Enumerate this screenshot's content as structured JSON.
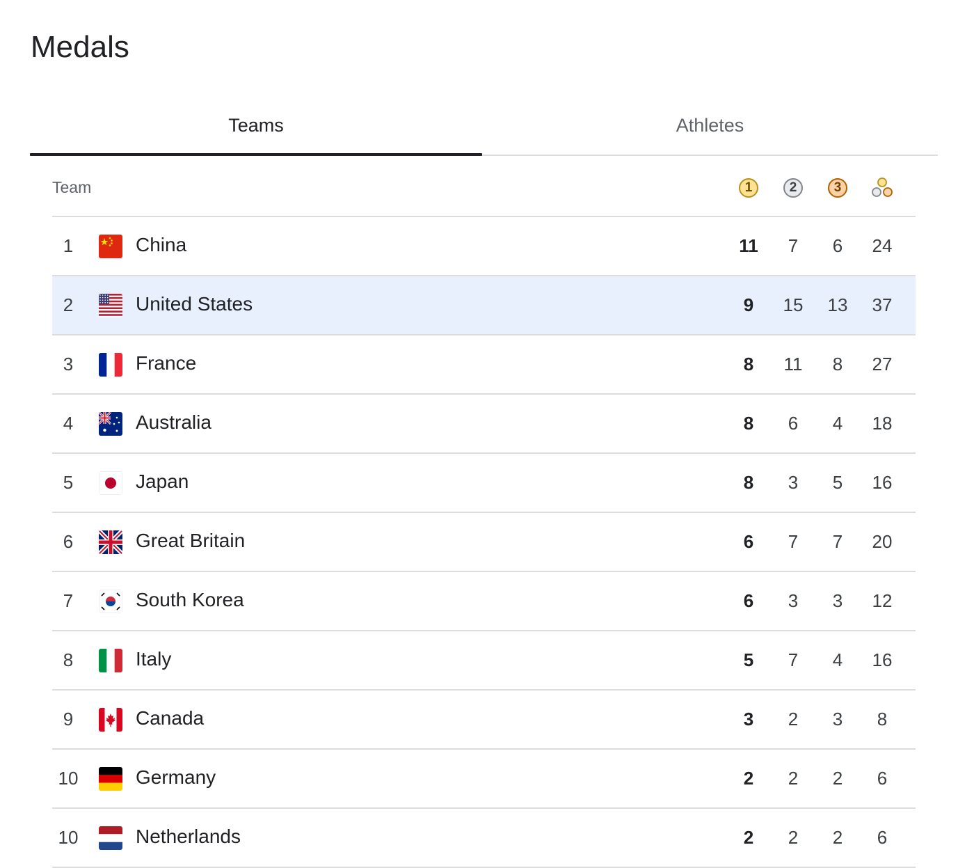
{
  "page": {
    "title": "Medals"
  },
  "tabs": [
    {
      "label": "Teams",
      "selected": true
    },
    {
      "label": "Athletes",
      "selected": false
    }
  ],
  "table": {
    "team_header": "Team",
    "medal_headers": [
      {
        "name": "gold",
        "icon": "gold-medal-icon",
        "glyph": "1",
        "fill": "#fde293",
        "stroke": "#b5911f",
        "text": "#6b4f00"
      },
      {
        "name": "silver",
        "icon": "silver-medal-icon",
        "glyph": "2",
        "fill": "#e8eaed",
        "stroke": "#80868b",
        "text": "#3c4043"
      },
      {
        "name": "bronze",
        "icon": "bronze-medal-icon",
        "glyph": "3",
        "fill": "#fcd3a7",
        "stroke": "#b06000",
        "text": "#7a3e00"
      },
      {
        "name": "total",
        "icon": "total-medals-icon"
      }
    ],
    "rows": [
      {
        "rank": "1",
        "country": "China",
        "flag": "china-flag-icon",
        "gold": "11",
        "silver": "7",
        "bronze": "6",
        "total": "24",
        "highlight": false
      },
      {
        "rank": "2",
        "country": "United States",
        "flag": "usa-flag-icon",
        "gold": "9",
        "silver": "15",
        "bronze": "13",
        "total": "37",
        "highlight": true
      },
      {
        "rank": "3",
        "country": "France",
        "flag": "france-flag-icon",
        "gold": "8",
        "silver": "11",
        "bronze": "8",
        "total": "27",
        "highlight": false
      },
      {
        "rank": "4",
        "country": "Australia",
        "flag": "australia-flag-icon",
        "gold": "8",
        "silver": "6",
        "bronze": "4",
        "total": "18",
        "highlight": false
      },
      {
        "rank": "5",
        "country": "Japan",
        "flag": "japan-flag-icon",
        "gold": "8",
        "silver": "3",
        "bronze": "5",
        "total": "16",
        "highlight": false
      },
      {
        "rank": "6",
        "country": "Great Britain",
        "flag": "great-britain-flag-icon",
        "gold": "6",
        "silver": "7",
        "bronze": "7",
        "total": "20",
        "highlight": false
      },
      {
        "rank": "7",
        "country": "South Korea",
        "flag": "south-korea-flag-icon",
        "gold": "6",
        "silver": "3",
        "bronze": "3",
        "total": "12",
        "highlight": false
      },
      {
        "rank": "8",
        "country": "Italy",
        "flag": "italy-flag-icon",
        "gold": "5",
        "silver": "7",
        "bronze": "4",
        "total": "16",
        "highlight": false
      },
      {
        "rank": "9",
        "country": "Canada",
        "flag": "canada-flag-icon",
        "gold": "3",
        "silver": "2",
        "bronze": "3",
        "total": "8",
        "highlight": false
      },
      {
        "rank": "10",
        "country": "Germany",
        "flag": "germany-flag-icon",
        "gold": "2",
        "silver": "2",
        "bronze": "2",
        "total": "6",
        "highlight": false
      },
      {
        "rank": "10",
        "country": "Netherlands",
        "flag": "netherlands-flag-icon",
        "gold": "2",
        "silver": "2",
        "bronze": "2",
        "total": "6",
        "highlight": false
      }
    ]
  },
  "colors": {
    "highlight_row": "#e8f0fe",
    "divider": "#dadce0",
    "tab_indicator": "#202124"
  }
}
